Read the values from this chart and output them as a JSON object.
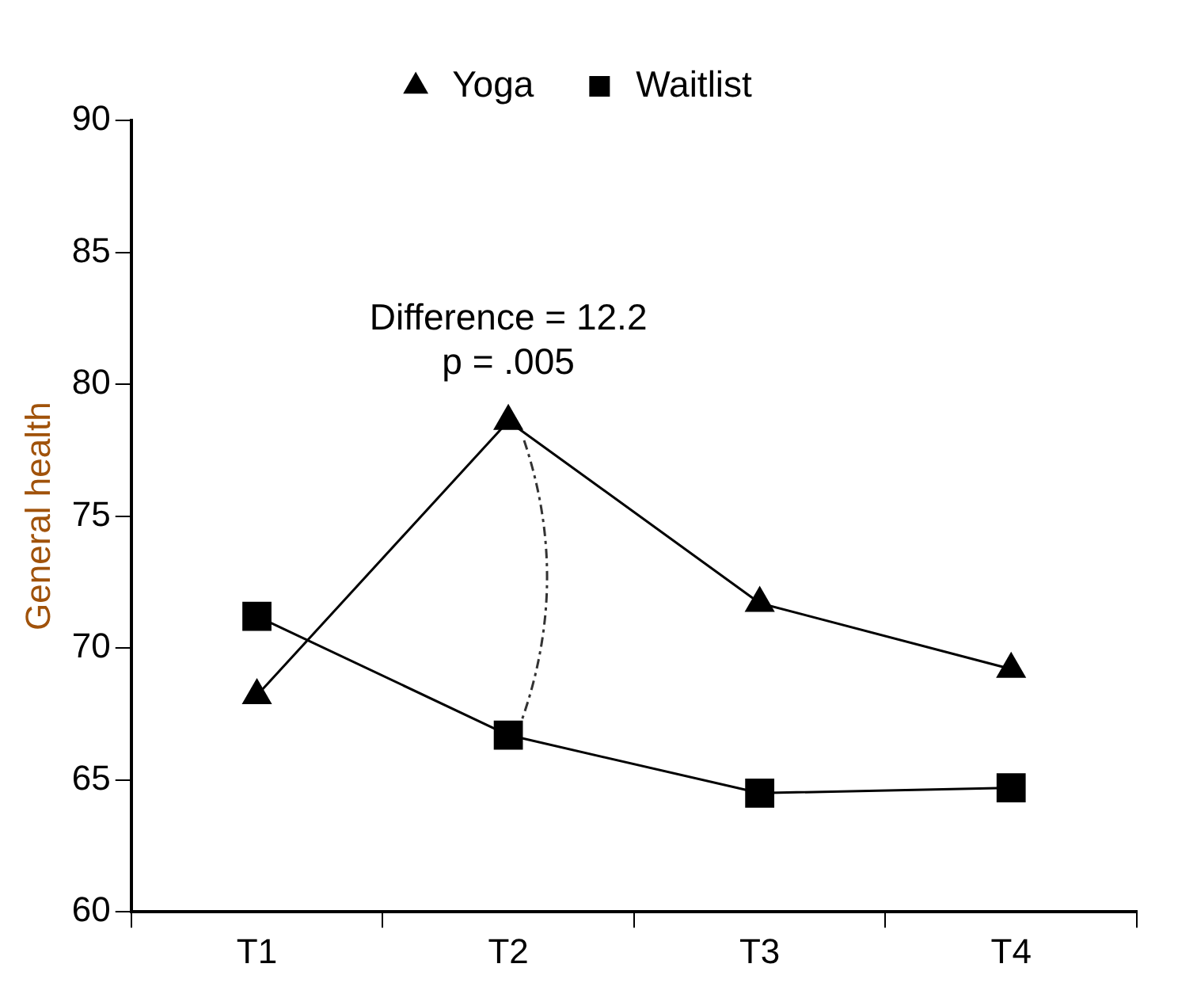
{
  "chart_data": {
    "type": "line",
    "ylabel": "General health",
    "categories": [
      "T1",
      "T2",
      "T3",
      "T4"
    ],
    "series": [
      {
        "name": "Yoga",
        "color": "#000000",
        "marker": "triangle",
        "values": [
          68.2,
          78.6,
          71.7,
          69.2
        ]
      },
      {
        "name": "Waitlist",
        "color": "#000000",
        "marker": "square",
        "values": [
          71.2,
          66.7,
          64.5,
          64.7
        ]
      }
    ],
    "ylim": [
      60,
      90
    ],
    "yticks": [
      60,
      65,
      70,
      75,
      80,
      85,
      90
    ],
    "grid": false,
    "legend": "top",
    "line_style": "solid",
    "annotations": [
      "Difference = 12.2",
      "p = .005"
    ]
  }
}
